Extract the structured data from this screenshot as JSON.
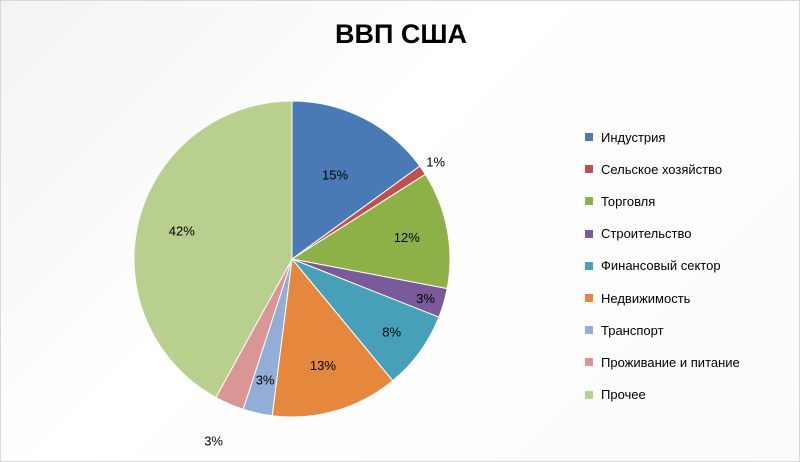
{
  "chart_data": {
    "type": "pie",
    "title": "ВВП США",
    "unit": "%",
    "categories": [
      "Индустрия",
      "Сельское хозяйство",
      "Торговля",
      "Строительство",
      "Финансовый сектор",
      "Недвижимость",
      "Транспорт",
      "Проживание и питание",
      "Прочее"
    ],
    "values": [
      15,
      1,
      12,
      3,
      8,
      13,
      3,
      3,
      42
    ],
    "colors": [
      "#4a7ab5",
      "#c0504d",
      "#8eb147",
      "#7a5a9a",
      "#45a0b8",
      "#e5883d",
      "#93aed6",
      "#d99694",
      "#b8cf8e"
    ],
    "start_angle_deg": 0,
    "direction": "clockwise",
    "legend_position": "right"
  }
}
